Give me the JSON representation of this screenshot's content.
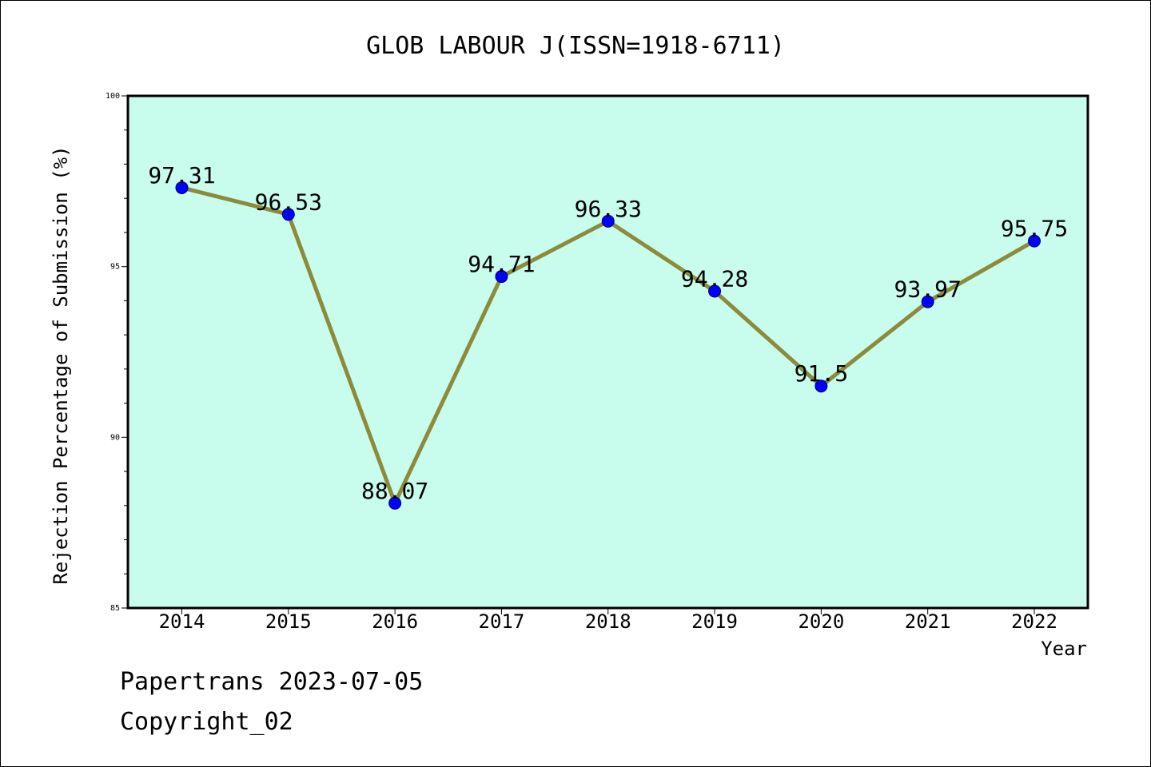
{
  "footer": {
    "line1": "Papertrans 2023-07-05",
    "line2": "Copyright_02"
  },
  "chart_data": {
    "type": "line",
    "title": "GLOB LABOUR J(ISSN=1918-6711)",
    "xlabel": "Year",
    "ylabel": "Rejection Percentage of Submission (%)",
    "categories": [
      "2014",
      "2015",
      "2016",
      "2017",
      "2018",
      "2019",
      "2020",
      "2021",
      "2022"
    ],
    "values": [
      97.31,
      96.53,
      88.07,
      94.71,
      96.33,
      94.28,
      91.5,
      93.97,
      95.75
    ],
    "data_labels": [
      "97.31",
      "96.53",
      "88.07",
      "94.71",
      "96.33",
      "94.28",
      "91.5",
      "93.97",
      "95.75"
    ],
    "ylim": [
      85,
      100
    ],
    "yticks": [
      "85",
      "90",
      "95",
      "100"
    ],
    "grid": false,
    "colors": {
      "plot_background": "#c8fcec",
      "line": "#8b8b3a",
      "marker": "#0000ff"
    }
  }
}
